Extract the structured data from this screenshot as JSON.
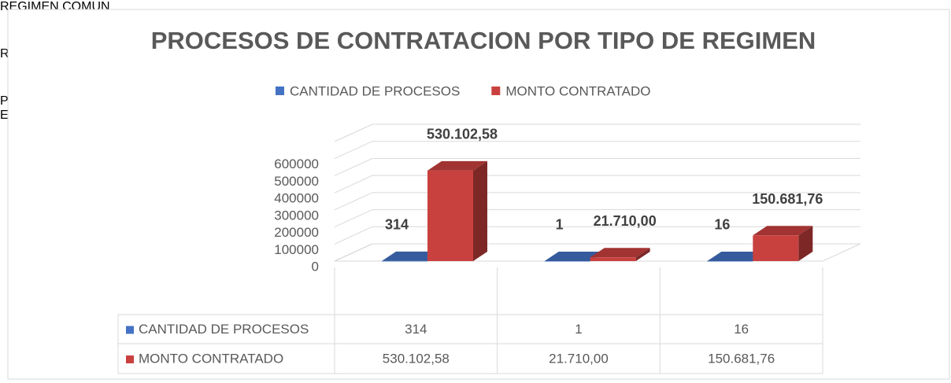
{
  "chart_data": {
    "type": "bar3d",
    "title": "PROCESOS DE CONTRATACION POR TIPO DE REGIMEN",
    "categories": [
      "REGIMEN COMUN",
      "REGIMEN ESPECIAL",
      "PROCEDIMIENTO ESPECIAL"
    ],
    "series": [
      {
        "name": "CANTIDAD DE PROCESOS",
        "color": "#4472c4",
        "values": [
          314,
          1,
          16
        ]
      },
      {
        "name": "MONTO CONTRATADO",
        "color": "#c9413f",
        "values": [
          530102.58,
          21710,
          150681.76
        ],
        "value_labels": [
          "530.102,58",
          "21.710,00",
          "150.681,76"
        ]
      }
    ],
    "ylim": [
      0,
      700000
    ],
    "yticks": [
      0,
      100000,
      200000,
      300000,
      400000,
      500000,
      600000
    ],
    "grid": true,
    "legend": "top",
    "data_table": true
  }
}
